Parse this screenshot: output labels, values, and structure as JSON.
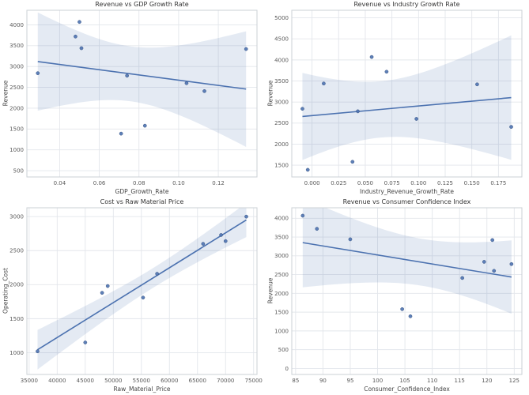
{
  "figure": {
    "background": "#ffffff"
  },
  "style": {
    "point_color": "#4c72b0",
    "point_edge_color": "#3b5684",
    "line_color": "#4c72b0",
    "band_color": "#4c72b0",
    "band_opacity": 0.15,
    "grid_color": "#e3e6eb",
    "spine_color": "#cbd0d6",
    "tick_label_color": "#595959",
    "axis_label_color": "#444444",
    "title_color": "#333333"
  },
  "chart_data": [
    {
      "type": "scatter",
      "title": "Revenue vs GDP Growth Rate",
      "xlabel": "GDP_Growth_Rate",
      "ylabel": "Revenue",
      "x": [
        0.029,
        0.048,
        0.05,
        0.051,
        0.071,
        0.074,
        0.083,
        0.104,
        0.113,
        0.134
      ],
      "y": [
        2840,
        3720,
        4070,
        3440,
        1390,
        2780,
        1580,
        2600,
        2410,
        3420
      ],
      "xlim": [
        0.0235,
        0.1395
      ],
      "ylim": [
        350,
        4350
      ],
      "xticks": [
        0.04,
        0.06,
        0.08,
        0.1,
        0.12
      ],
      "yticks": [
        500,
        1000,
        1500,
        2000,
        2500,
        3000,
        3500,
        4000
      ],
      "x_tick_decimals": 2,
      "y_tick_decimals": 0,
      "regression_line": true,
      "confidence_band": 95,
      "grid": true
    },
    {
      "type": "scatter",
      "title": "Revenue vs Industry Growth Rate",
      "xlabel": "Industry_Revenue_Growth_Rate",
      "ylabel": "Revenue",
      "x": [
        -0.009,
        0.07,
        0.056,
        0.011,
        -0.004,
        0.043,
        0.038,
        0.098,
        0.187,
        0.155
      ],
      "y": [
        2840,
        3720,
        4070,
        3440,
        1390,
        2780,
        1580,
        2600,
        2410,
        3420
      ],
      "xlim": [
        -0.019,
        0.197
      ],
      "ylim": [
        1220,
        5180
      ],
      "xticks": [
        0.0,
        0.025,
        0.05,
        0.075,
        0.1,
        0.125,
        0.15,
        0.175
      ],
      "yticks": [
        1500,
        2000,
        2500,
        3000,
        3500,
        4000,
        4500,
        5000
      ],
      "x_tick_decimals": 3,
      "y_tick_decimals": 0,
      "regression_line": true,
      "confidence_band": 95,
      "grid": true
    },
    {
      "type": "scatter",
      "title": "Cost vs Raw Material Price",
      "xlabel": "Raw_Material_Price",
      "ylabel": "Operating_Cost",
      "x": [
        36500,
        45000,
        48000,
        49000,
        55300,
        57800,
        66000,
        69200,
        70000,
        73700
      ],
      "y": [
        1020,
        1150,
        1880,
        1980,
        1810,
        2160,
        2600,
        2730,
        2640,
        3000
      ],
      "xlim": [
        34600,
        75600
      ],
      "ylim": [
        680,
        3130
      ],
      "xticks": [
        35000,
        40000,
        45000,
        50000,
        55000,
        60000,
        65000,
        70000,
        75000
      ],
      "yticks": [
        1000,
        1500,
        2000,
        2500,
        3000
      ],
      "x_tick_decimals": 0,
      "y_tick_decimals": 0,
      "regression_line": true,
      "confidence_band": 95,
      "grid": true
    },
    {
      "type": "scatter",
      "title": "Revenue vs Consumer Confidence Index",
      "xlabel": "Consumer_Confidence_Index",
      "ylabel": "Revenue",
      "x": [
        86.3,
        88.9,
        95.0,
        104.5,
        106.0,
        115.5,
        119.5,
        121.0,
        121.3,
        124.5
      ],
      "y": [
        4070,
        3720,
        3440,
        1580,
        1390,
        2410,
        2840,
        3420,
        2600,
        2780
      ],
      "xlim": [
        84.3,
        126.4
      ],
      "ylim": [
        -160,
        4280
      ],
      "xticks": [
        85,
        90,
        95,
        100,
        105,
        110,
        115,
        120,
        125
      ],
      "yticks": [
        0,
        500,
        1000,
        1500,
        2000,
        2500,
        3000,
        3500,
        4000
      ],
      "x_tick_decimals": 0,
      "y_tick_decimals": 0,
      "regression_line": true,
      "confidence_band": 95,
      "grid": true
    }
  ]
}
